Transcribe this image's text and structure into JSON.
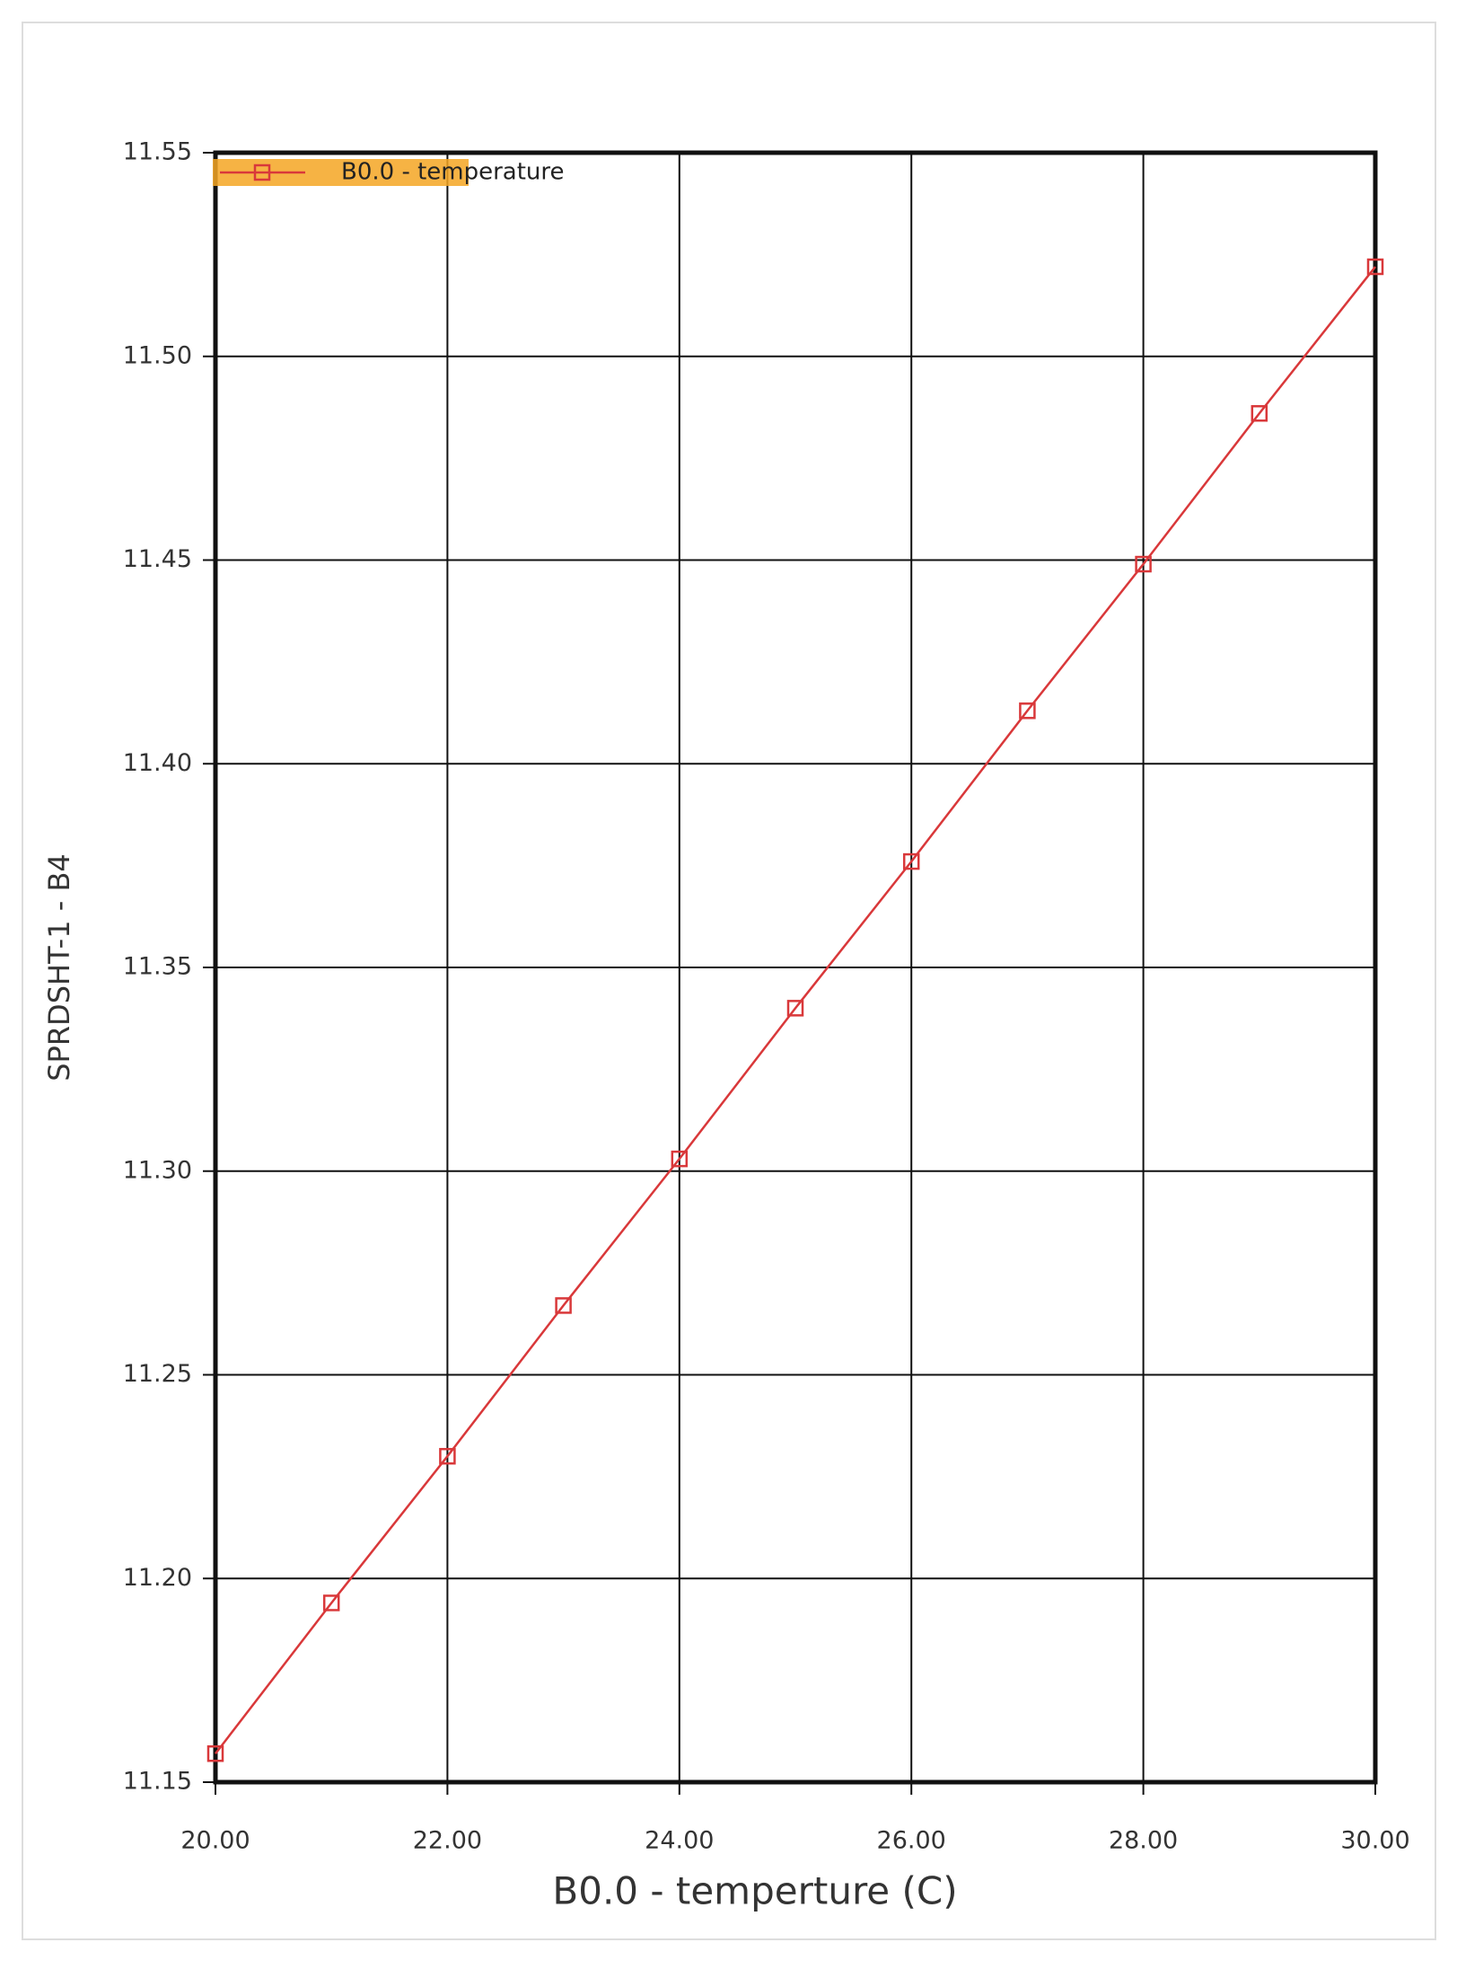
{
  "chart_data": {
    "type": "line",
    "x_label": "B0.0 - temperture (C)",
    "y_label": "SPRDSHT-1 - B4",
    "x": [
      20,
      21,
      22,
      23,
      24,
      25,
      26,
      27,
      28,
      29,
      30
    ],
    "series": [
      {
        "name": "B0.0 - temperature",
        "color": "#d9383a",
        "values": [
          11.157,
          11.194,
          11.23,
          11.267,
          11.303,
          11.34,
          11.376,
          11.413,
          11.449,
          11.486,
          11.522
        ]
      }
    ],
    "xlim": [
      20,
      30
    ],
    "xticks": [
      {
        "value": 20,
        "label": "20.00"
      },
      {
        "value": 22,
        "label": "22.00"
      },
      {
        "value": 24,
        "label": "24.00"
      },
      {
        "value": 26,
        "label": "26.00"
      },
      {
        "value": 28,
        "label": "28.00"
      },
      {
        "value": 30,
        "label": "30.00"
      }
    ],
    "ylim": [
      11.15,
      11.55
    ],
    "yticks": [
      11.15,
      {
        "value": 11.2,
        "label": "11.20"
      },
      11.25,
      {
        "value": 11.3,
        "label": "11.30"
      },
      11.35,
      {
        "value": 11.4,
        "label": "11.40"
      },
      11.45,
      {
        "value": 11.5,
        "label": "11.50"
      },
      11.55
    ],
    "grid": true,
    "legend": "top-left",
    "legend_color": "#f5a623"
  }
}
